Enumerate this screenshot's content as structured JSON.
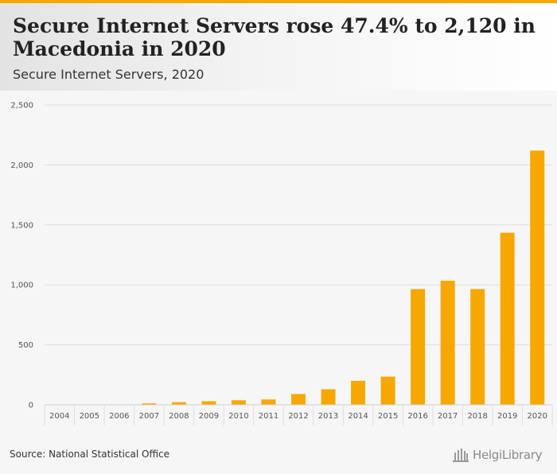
{
  "header": {
    "title": "Secure Internet Servers rose 47.4% to 2,120 in Macedonia in 2020",
    "subtitle": "Secure Internet Servers, 2020"
  },
  "footer": {
    "source": "Source: National Statistical Office",
    "logo_text": "HelgiLibrary"
  },
  "colors": {
    "bar": "#f7a800",
    "grid": "#dedede",
    "axis_text": "#555555"
  },
  "chart_data": {
    "type": "bar",
    "title": "Secure Internet Servers rose 47.4% to 2,120 in Macedonia in 2020",
    "subtitle": "Secure Internet Servers, 2020",
    "xlabel": "",
    "ylabel": "",
    "categories": [
      "2004",
      "2005",
      "2006",
      "2007",
      "2008",
      "2009",
      "2010",
      "2011",
      "2012",
      "2013",
      "2014",
      "2015",
      "2016",
      "2017",
      "2018",
      "2019",
      "2020"
    ],
    "values": [
      2,
      3,
      3,
      12,
      22,
      30,
      38,
      45,
      90,
      130,
      200,
      235,
      965,
      1035,
      965,
      1435,
      2120
    ],
    "ylim": [
      0,
      2500
    ],
    "yticks": [
      0,
      500,
      1000,
      1500,
      2000,
      2500
    ],
    "ytick_labels": [
      "0",
      "500",
      "1,000",
      "1,500",
      "2,000",
      "2,500"
    ],
    "grid": true,
    "legend": "none"
  }
}
